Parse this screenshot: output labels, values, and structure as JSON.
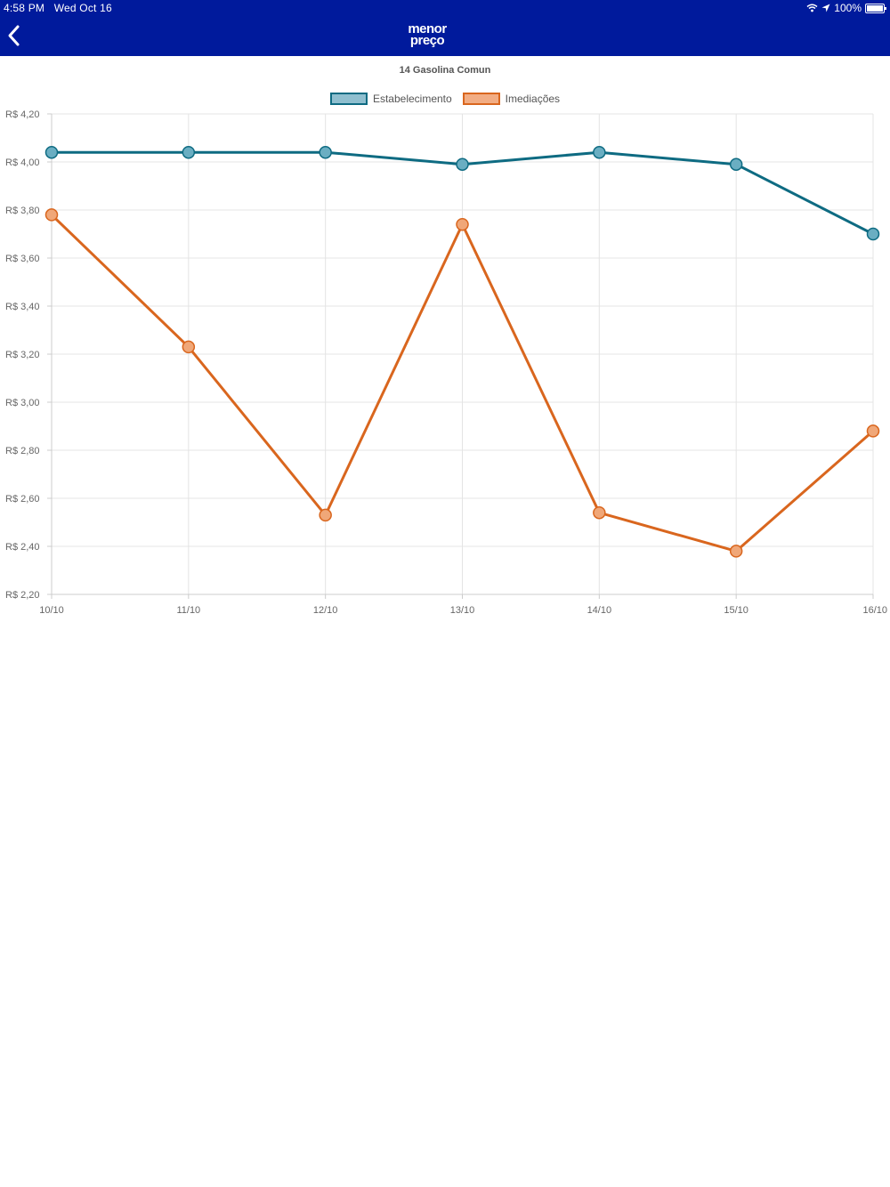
{
  "status_bar": {
    "time": "4:58 PM",
    "date": "Wed Oct 16",
    "battery": "100%"
  },
  "header": {
    "logo_line1": "menor",
    "logo_line2": "preço",
    "background": "#001a9c"
  },
  "chart_data": {
    "type": "line",
    "title": "14 Gasolina Comun",
    "categories": [
      "10/10",
      "11/10",
      "12/10",
      "13/10",
      "14/10",
      "15/10",
      "16/10"
    ],
    "series": [
      {
        "name": "Estabelecimento",
        "color": "#0e6b82",
        "fill": "#6aaec2",
        "values": [
          4.04,
          4.04,
          4.04,
          3.99,
          4.04,
          3.99,
          3.7
        ]
      },
      {
        "name": "Imediações",
        "color": "#d9661e",
        "fill": "#f0a778",
        "values": [
          3.78,
          3.23,
          2.53,
          3.74,
          2.54,
          2.38,
          2.88
        ]
      }
    ],
    "y_ticks": [
      "R$ 4,20",
      "R$ 4,00",
      "R$ 3,80",
      "R$ 3,60",
      "R$ 3,40",
      "R$ 3,20",
      "R$ 3,00",
      "R$ 2,80",
      "R$ 2,60",
      "R$ 2,40",
      "R$ 2,20"
    ],
    "ylim": [
      2.2,
      4.2
    ],
    "grid": true,
    "legend_position": "top-center"
  }
}
